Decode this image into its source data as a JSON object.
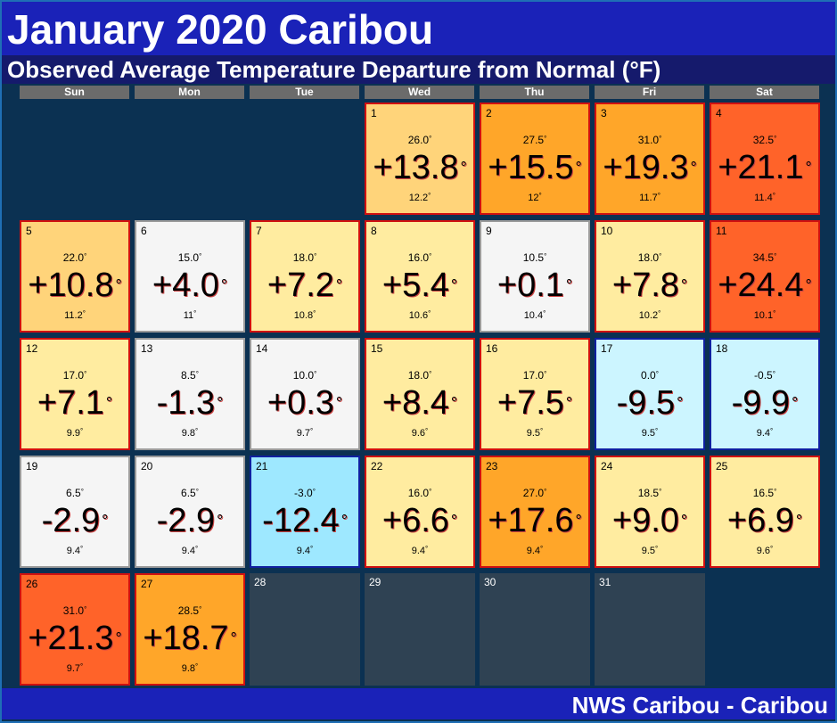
{
  "header": {
    "title": "January 2020 Caribou",
    "subtitle": "Observed Average Temperature Departure from Normal (°F)"
  },
  "degree_symbol": "°",
  "weekdays": [
    "Sun",
    "Mon",
    "Tue",
    "Wed",
    "Thu",
    "Fri",
    "Sat"
  ],
  "days": [
    null,
    null,
    null,
    {
      "day": 1,
      "avg": "26.0",
      "departure": "+13.8",
      "normal": "12.2"
    },
    {
      "day": 2,
      "avg": "27.5",
      "departure": "+15.5",
      "normal": "12"
    },
    {
      "day": 3,
      "avg": "31.0",
      "departure": "+19.3",
      "normal": "11.7"
    },
    {
      "day": 4,
      "avg": "32.5",
      "departure": "+21.1",
      "normal": "11.4"
    },
    {
      "day": 5,
      "avg": "22.0",
      "departure": "+10.8",
      "normal": "11.2"
    },
    {
      "day": 6,
      "avg": "15.0",
      "departure": "+4.0",
      "normal": "11"
    },
    {
      "day": 7,
      "avg": "18.0",
      "departure": "+7.2",
      "normal": "10.8"
    },
    {
      "day": 8,
      "avg": "16.0",
      "departure": "+5.4",
      "normal": "10.6"
    },
    {
      "day": 9,
      "avg": "10.5",
      "departure": "+0.1",
      "normal": "10.4"
    },
    {
      "day": 10,
      "avg": "18.0",
      "departure": "+7.8",
      "normal": "10.2"
    },
    {
      "day": 11,
      "avg": "34.5",
      "departure": "+24.4",
      "normal": "10.1"
    },
    {
      "day": 12,
      "avg": "17.0",
      "departure": "+7.1",
      "normal": "9.9"
    },
    {
      "day": 13,
      "avg": "8.5",
      "departure": "-1.3",
      "normal": "9.8"
    },
    {
      "day": 14,
      "avg": "10.0",
      "departure": "+0.3",
      "normal": "9.7"
    },
    {
      "day": 15,
      "avg": "18.0",
      "departure": "+8.4",
      "normal": "9.6"
    },
    {
      "day": 16,
      "avg": "17.0",
      "departure": "+7.5",
      "normal": "9.5"
    },
    {
      "day": 17,
      "avg": "0.0",
      "departure": "-9.5",
      "normal": "9.5"
    },
    {
      "day": 18,
      "avg": "-0.5",
      "departure": "-9.9",
      "normal": "9.4"
    },
    {
      "day": 19,
      "avg": "6.5",
      "departure": "-2.9",
      "normal": "9.4"
    },
    {
      "day": 20,
      "avg": "6.5",
      "departure": "-2.9",
      "normal": "9.4"
    },
    {
      "day": 21,
      "avg": "-3.0",
      "departure": "-12.4",
      "normal": "9.4"
    },
    {
      "day": 22,
      "avg": "16.0",
      "departure": "+6.6",
      "normal": "9.4"
    },
    {
      "day": 23,
      "avg": "27.0",
      "departure": "+17.6",
      "normal": "9.4"
    },
    {
      "day": 24,
      "avg": "18.5",
      "departure": "+9.0",
      "normal": "9.5"
    },
    {
      "day": 25,
      "avg": "16.5",
      "departure": "+6.9",
      "normal": "9.6"
    },
    {
      "day": 26,
      "avg": "31.0",
      "departure": "+21.3",
      "normal": "9.7"
    },
    {
      "day": 27,
      "avg": "28.5",
      "departure": "+18.7",
      "normal": "9.8"
    },
    {
      "day": 28
    },
    {
      "day": 29
    },
    {
      "day": 30
    },
    {
      "day": 31
    }
  ],
  "footer": "NWS Caribou - Caribou"
}
